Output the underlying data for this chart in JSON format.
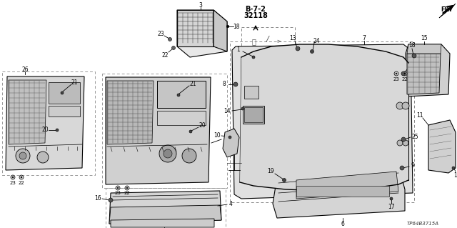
{
  "bg": "#ffffff",
  "part_number": "TP64B3715A",
  "diagram_ref": "B-7-2",
  "diagram_num": "32118",
  "fig_w": 6.4,
  "fig_h": 3.19,
  "dpi": 100
}
